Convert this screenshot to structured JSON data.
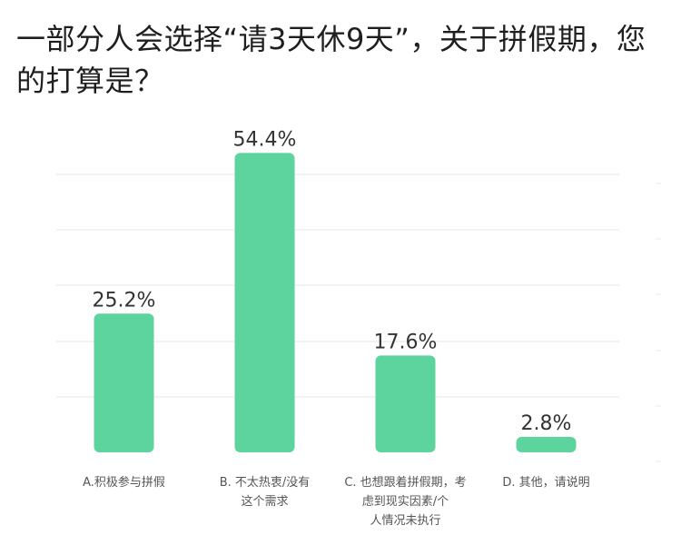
{
  "chart_data": {
    "type": "bar",
    "title": "一部分人会选择“请3天休9天”，关于拼假期，您的打算是？",
    "xlabel": "",
    "ylabel": "",
    "categories": [
      "A.积极参与拼假",
      "B. 不太热衷/没有这个需求",
      "C. 也想跟着拼假期，考虑到现实因素/个人情况未执行",
      "D. 其他，请说明"
    ],
    "category_lines": [
      [
        "A.积极参与拼假"
      ],
      [
        "B. 不太热衷/没有",
        "这个需求"
      ],
      [
        "C. 也想跟着拼假期，考",
        "虑到现实因素/个",
        "人情况未执行"
      ],
      [
        "D. 其他，请说明"
      ]
    ],
    "values": [
      25.2,
      54.4,
      17.6,
      2.8
    ],
    "value_labels": [
      "25.2%",
      "54.4%",
      "17.6%",
      "2.8%"
    ],
    "ylim": [
      0,
      60
    ],
    "grid": true,
    "legend": "none",
    "bar_color": "#5dd39e",
    "grid_color": "#e6e6e6",
    "label_color": "#333333"
  }
}
